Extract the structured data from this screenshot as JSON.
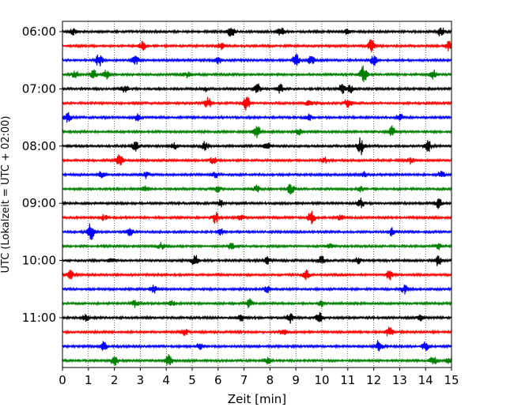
{
  "chart_data": {
    "type": "line",
    "xlabel": "Zeit  [min]",
    "ylabel": "UTC (Lokalzeit = UTC + 02:00)",
    "xlim": [
      0,
      15
    ],
    "x_ticks": [
      "0",
      "1",
      "2",
      "3",
      "4",
      "5",
      "6",
      "7",
      "8",
      "9",
      "10",
      "11",
      "12",
      "13",
      "14",
      "15"
    ],
    "y_ticks": [
      "06:00",
      "07:00",
      "08:00",
      "09:00",
      "10:00",
      "11:00"
    ],
    "rows_per_hour": 4,
    "row_minutes": 15,
    "grid": "vertical dotted at each minute",
    "trace_colors": [
      "#000000",
      "#ff0000",
      "#0000ff",
      "#008000"
    ],
    "traces": [
      {
        "start": "06:00",
        "color": "#000000",
        "events": [
          [
            0.4,
            0.6
          ],
          [
            6.5,
            1.0
          ],
          [
            8.4,
            1.0
          ],
          [
            11.0,
            0.6
          ],
          [
            14.6,
            0.9
          ]
        ]
      },
      {
        "start": "06:15",
        "color": "#ff0000",
        "events": [
          [
            3.1,
            0.8
          ],
          [
            6.1,
            0.6
          ],
          [
            11.9,
            1.2
          ],
          [
            14.9,
            0.8
          ]
        ]
      },
      {
        "start": "06:30",
        "color": "#0000ff",
        "events": [
          [
            1.4,
            1.2
          ],
          [
            2.8,
            0.8
          ],
          [
            6.0,
            0.6
          ],
          [
            9.0,
            1.2
          ],
          [
            9.6,
            0.8
          ],
          [
            12.0,
            0.9
          ]
        ]
      },
      {
        "start": "06:45",
        "color": "#008000",
        "events": [
          [
            0.5,
            0.7
          ],
          [
            1.2,
            0.9
          ],
          [
            1.7,
            0.8
          ],
          [
            4.8,
            0.5
          ],
          [
            11.6,
            1.6
          ],
          [
            14.3,
            0.8
          ]
        ]
      },
      {
        "start": "07:00",
        "color": "#000000",
        "events": [
          [
            2.4,
            0.7
          ],
          [
            5.5,
            0.5
          ],
          [
            7.5,
            1.0
          ],
          [
            8.4,
            0.8
          ],
          [
            10.8,
            1.0
          ],
          [
            11.1,
            0.8
          ]
        ]
      },
      {
        "start": "07:15",
        "color": "#ff0000",
        "events": [
          [
            5.6,
            1.0
          ],
          [
            7.1,
            1.2
          ],
          [
            9.5,
            0.5
          ],
          [
            11.0,
            0.9
          ]
        ]
      },
      {
        "start": "07:30",
        "color": "#0000ff",
        "events": [
          [
            0.2,
            0.9
          ],
          [
            2.9,
            0.6
          ],
          [
            9.5,
            0.6
          ],
          [
            13.0,
            0.7
          ]
        ]
      },
      {
        "start": "07:45",
        "color": "#008000",
        "events": [
          [
            7.5,
            1.1
          ],
          [
            9.1,
            0.5
          ],
          [
            12.7,
            1.0
          ]
        ]
      },
      {
        "start": "08:00",
        "color": "#000000",
        "events": [
          [
            2.8,
            0.9
          ],
          [
            4.3,
            0.6
          ],
          [
            5.5,
            0.9
          ],
          [
            7.9,
            0.7
          ],
          [
            11.5,
            1.5
          ],
          [
            14.1,
            1.0
          ]
        ]
      },
      {
        "start": "08:15",
        "color": "#ff0000",
        "events": [
          [
            2.2,
            1.0
          ],
          [
            5.8,
            0.6
          ],
          [
            10.1,
            0.5
          ],
          [
            13.4,
            0.6
          ]
        ]
      },
      {
        "start": "08:30",
        "color": "#0000ff",
        "events": [
          [
            1.5,
            0.6
          ],
          [
            3.2,
            0.6
          ],
          [
            5.9,
            0.5
          ],
          [
            11.6,
            0.5
          ],
          [
            14.6,
            0.6
          ]
        ]
      },
      {
        "start": "08:45",
        "color": "#008000",
        "events": [
          [
            3.2,
            0.5
          ],
          [
            6.0,
            0.6
          ],
          [
            7.5,
            0.7
          ],
          [
            8.8,
            1.0
          ],
          [
            11.5,
            0.5
          ]
        ]
      },
      {
        "start": "09:00",
        "color": "#000000",
        "events": [
          [
            6.1,
            0.6
          ],
          [
            11.5,
            0.9
          ],
          [
            14.5,
            0.9
          ]
        ]
      },
      {
        "start": "09:15",
        "color": "#ff0000",
        "events": [
          [
            1.6,
            0.5
          ],
          [
            5.9,
            1.0
          ],
          [
            6.9,
            0.6
          ],
          [
            9.6,
            1.2
          ],
          [
            10.7,
            0.5
          ]
        ]
      },
      {
        "start": "09:30",
        "color": "#0000ff",
        "events": [
          [
            1.1,
            1.6
          ],
          [
            2.6,
            0.6
          ],
          [
            6.1,
            0.6
          ],
          [
            12.7,
            0.7
          ]
        ]
      },
      {
        "start": "09:45",
        "color": "#008000",
        "events": [
          [
            3.8,
            0.6
          ],
          [
            6.5,
            0.7
          ],
          [
            10.3,
            0.5
          ],
          [
            14.5,
            0.5
          ]
        ]
      },
      {
        "start": "10:00",
        "color": "#000000",
        "events": [
          [
            1.9,
            0.5
          ],
          [
            5.1,
            1.0
          ],
          [
            7.9,
            0.6
          ],
          [
            10.0,
            0.8
          ],
          [
            11.4,
            0.5
          ],
          [
            14.5,
            1.0
          ]
        ]
      },
      {
        "start": "10:15",
        "color": "#ff0000",
        "events": [
          [
            0.3,
            0.9
          ],
          [
            9.4,
            0.9
          ],
          [
            12.6,
            0.9
          ]
        ]
      },
      {
        "start": "10:30",
        "color": "#0000ff",
        "events": [
          [
            3.5,
            0.8
          ],
          [
            7.9,
            0.6
          ],
          [
            13.2,
            0.8
          ]
        ]
      },
      {
        "start": "10:45",
        "color": "#008000",
        "events": [
          [
            2.8,
            0.6
          ],
          [
            4.2,
            0.5
          ],
          [
            7.2,
            0.8
          ],
          [
            10.0,
            0.5
          ]
        ]
      },
      {
        "start": "11:00",
        "color": "#000000",
        "events": [
          [
            0.9,
            0.6
          ],
          [
            6.9,
            0.6
          ],
          [
            8.8,
            0.9
          ],
          [
            9.9,
            0.9
          ],
          [
            13.8,
            0.5
          ]
        ]
      },
      {
        "start": "11:15",
        "color": "#ff0000",
        "events": [
          [
            4.7,
            0.6
          ],
          [
            8.5,
            0.5
          ],
          [
            12.6,
            0.9
          ]
        ]
      },
      {
        "start": "11:30",
        "color": "#0000ff",
        "events": [
          [
            1.6,
            0.9
          ],
          [
            5.3,
            0.6
          ],
          [
            12.2,
            1.1
          ],
          [
            14.0,
            0.8
          ]
        ]
      },
      {
        "start": "11:45",
        "color": "#008000",
        "events": [
          [
            2.0,
            1.0
          ],
          [
            4.1,
            1.0
          ],
          [
            7.9,
            0.6
          ],
          [
            14.3,
            0.9
          ],
          [
            14.9,
            0.8
          ]
        ]
      }
    ]
  }
}
